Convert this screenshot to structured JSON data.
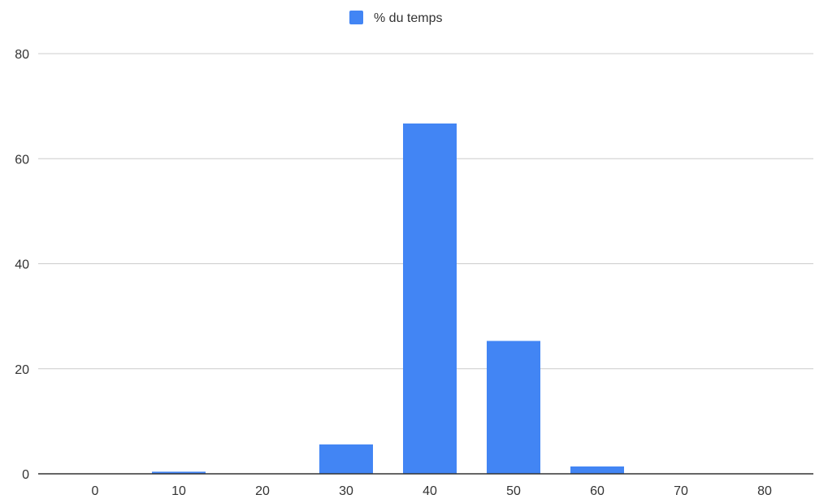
{
  "chart_data": {
    "type": "bar",
    "categories": [
      "0",
      "10",
      "20",
      "30",
      "40",
      "50",
      "60",
      "70",
      "80"
    ],
    "series": [
      {
        "name": "% du temps",
        "values": [
          0,
          0.4,
          0,
          5.6,
          66.7,
          25.3,
          1.4,
          0,
          0
        ],
        "color": "#4285f4"
      }
    ],
    "title": "",
    "xlabel": "",
    "ylabel": "",
    "ylim": [
      0,
      80
    ],
    "yticks": [
      "0",
      "20",
      "40",
      "60",
      "80"
    ],
    "grid": true,
    "legend": "top-center"
  }
}
